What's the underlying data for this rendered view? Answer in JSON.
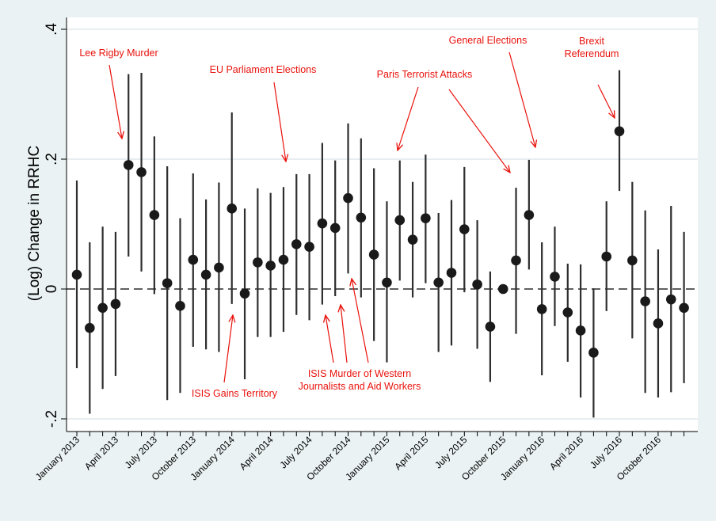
{
  "chart_data": {
    "type": "scatter",
    "subtype": "point-with-confidence-interval",
    "title": "",
    "xlabel": "",
    "ylabel": "(Log) Change in RRHC",
    "ylim": [
      -0.2,
      0.4
    ],
    "yticks": [
      -0.2,
      0,
      0.2,
      0.4
    ],
    "ytick_labels": [
      "-.2",
      "0",
      ".2",
      ".4"
    ],
    "reference_line": {
      "y": 0,
      "style": "dashed"
    },
    "grid": {
      "horizontal": true,
      "vertical": false
    },
    "x_tick_labels": [
      {
        "index": 0,
        "label": "January 2013"
      },
      {
        "index": 3,
        "label": "April 2013"
      },
      {
        "index": 6,
        "label": "July 2013"
      },
      {
        "index": 9,
        "label": "October 2013"
      },
      {
        "index": 12,
        "label": "January 2014"
      },
      {
        "index": 15,
        "label": "April 2014"
      },
      {
        "index": 18,
        "label": "July 2014"
      },
      {
        "index": 21,
        "label": "October 2014"
      },
      {
        "index": 24,
        "label": "January 2015"
      },
      {
        "index": 27,
        "label": "April 2015"
      },
      {
        "index": 30,
        "label": "July 2015"
      },
      {
        "index": 33,
        "label": "October 2015"
      },
      {
        "index": 36,
        "label": "January 2016"
      },
      {
        "index": 39,
        "label": "April 2016"
      },
      {
        "index": 42,
        "label": "July 2016"
      },
      {
        "index": 45,
        "label": "October 2016"
      }
    ],
    "points": [
      {
        "y": 0.022,
        "lo": -0.122,
        "hi": 0.167
      },
      {
        "y": -0.06,
        "lo": -0.192,
        "hi": 0.072
      },
      {
        "y": -0.029,
        "lo": -0.154,
        "hi": 0.096
      },
      {
        "y": -0.023,
        "lo": -0.134,
        "hi": 0.088
      },
      {
        "y": 0.191,
        "lo": 0.05,
        "hi": 0.331
      },
      {
        "y": 0.18,
        "lo": 0.027,
        "hi": 0.333
      },
      {
        "y": 0.114,
        "lo": -0.008,
        "hi": 0.235
      },
      {
        "y": 0.009,
        "lo": -0.171,
        "hi": 0.189
      },
      {
        "y": -0.026,
        "lo": -0.16,
        "hi": 0.109
      },
      {
        "y": 0.045,
        "lo": -0.089,
        "hi": 0.178
      },
      {
        "y": 0.022,
        "lo": -0.093,
        "hi": 0.138
      },
      {
        "y": 0.033,
        "lo": -0.097,
        "hi": 0.164
      },
      {
        "y": 0.124,
        "lo": -0.023,
        "hi": 0.272
      },
      {
        "y": -0.007,
        "lo": -0.139,
        "hi": 0.124
      },
      {
        "y": 0.041,
        "lo": -0.074,
        "hi": 0.155
      },
      {
        "y": 0.036,
        "lo": -0.074,
        "hi": 0.148
      },
      {
        "y": 0.045,
        "lo": -0.066,
        "hi": 0.157
      },
      {
        "y": 0.069,
        "lo": -0.04,
        "hi": 0.177
      },
      {
        "y": 0.065,
        "lo": -0.048,
        "hi": 0.177
      },
      {
        "y": 0.101,
        "lo": -0.024,
        "hi": 0.225
      },
      {
        "y": 0.094,
        "lo": -0.011,
        "hi": 0.198
      },
      {
        "y": 0.14,
        "lo": 0.024,
        "hi": 0.255
      },
      {
        "y": 0.11,
        "lo": -0.013,
        "hi": 0.232
      },
      {
        "y": 0.053,
        "lo": -0.08,
        "hi": 0.186
      },
      {
        "y": 0.01,
        "lo": -0.113,
        "hi": 0.135
      },
      {
        "y": 0.106,
        "lo": 0.013,
        "hi": 0.198
      },
      {
        "y": 0.076,
        "lo": -0.013,
        "hi": 0.165
      },
      {
        "y": 0.109,
        "lo": 0.009,
        "hi": 0.207
      },
      {
        "y": 0.01,
        "lo": -0.097,
        "hi": 0.117
      },
      {
        "y": 0.025,
        "lo": -0.087,
        "hi": 0.137
      },
      {
        "y": 0.092,
        "lo": -0.005,
        "hi": 0.188
      },
      {
        "y": 0.007,
        "lo": -0.092,
        "hi": 0.106
      },
      {
        "y": -0.058,
        "lo": -0.143,
        "hi": 0.027
      },
      {
        "y": 0.0,
        "lo": 0.0,
        "hi": 0.0
      },
      {
        "y": 0.044,
        "lo": -0.069,
        "hi": 0.156
      },
      {
        "y": 0.114,
        "lo": 0.03,
        "hi": 0.199
      },
      {
        "y": -0.031,
        "lo": -0.133,
        "hi": 0.072
      },
      {
        "y": 0.019,
        "lo": -0.057,
        "hi": 0.096
      },
      {
        "y": -0.036,
        "lo": -0.112,
        "hi": 0.039
      },
      {
        "y": -0.064,
        "lo": -0.167,
        "hi": 0.038
      },
      {
        "y": -0.098,
        "lo": -0.198,
        "hi": 0.001
      },
      {
        "y": 0.05,
        "lo": -0.034,
        "hi": 0.135
      },
      {
        "y": 0.243,
        "lo": 0.151,
        "hi": 0.337
      },
      {
        "y": 0.044,
        "lo": -0.076,
        "hi": 0.165
      },
      {
        "y": -0.019,
        "lo": -0.16,
        "hi": 0.121
      },
      {
        "y": -0.053,
        "lo": -0.167,
        "hi": 0.061
      },
      {
        "y": -0.016,
        "lo": -0.159,
        "hi": 0.128
      },
      {
        "y": -0.029,
        "lo": -0.145,
        "hi": 0.088
      }
    ],
    "annotations": [
      {
        "id": "lee-rigby",
        "lines": [
          "Lee Rigby Murder"
        ]
      },
      {
        "id": "eu-elections",
        "lines": [
          "EU Parliament Elections"
        ]
      },
      {
        "id": "paris-attacks",
        "lines": [
          "Paris Terrorist Attacks"
        ]
      },
      {
        "id": "general-elections",
        "lines": [
          "General Elections"
        ]
      },
      {
        "id": "brexit",
        "lines": [
          "Brexit",
          "Referendum"
        ]
      },
      {
        "id": "isis-territory",
        "lines": [
          "ISIS Gains Territory"
        ]
      },
      {
        "id": "isis-murder",
        "lines": [
          "ISIS Murder of Western",
          "Journalists and Aid Workers"
        ]
      }
    ],
    "colors": {
      "background": "#eaf2f3",
      "plot_background": "#ffffff",
      "markers": "#1a1a1a",
      "intervals": "#2e2e2e",
      "annotation": "#e8120c",
      "gridline": "#e8eef0"
    }
  }
}
